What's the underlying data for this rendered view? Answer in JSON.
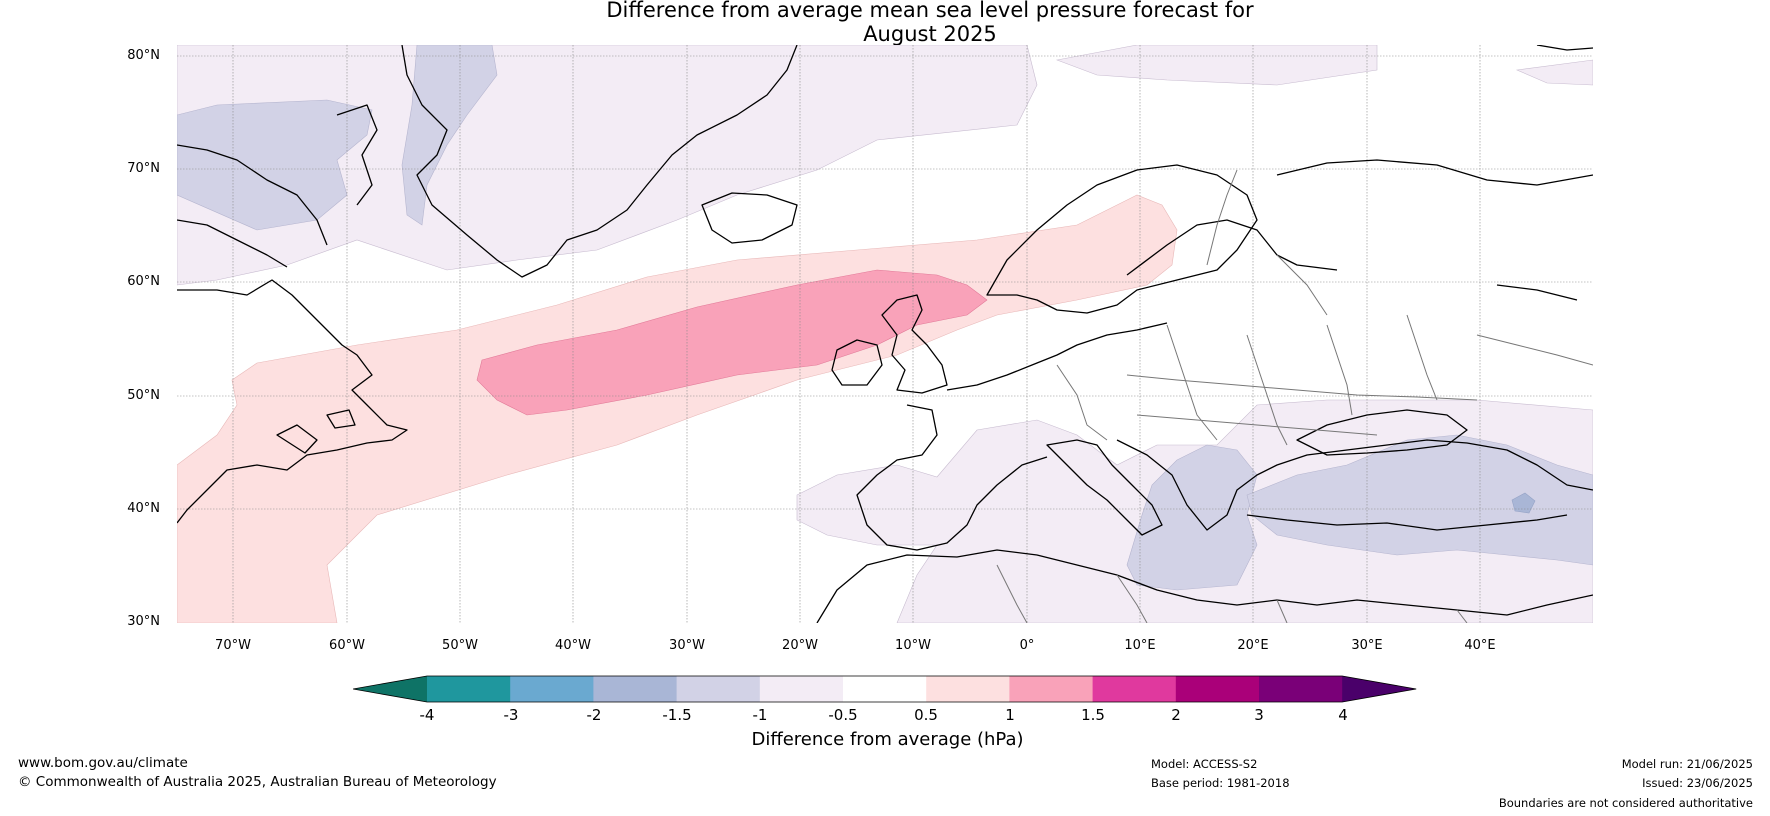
{
  "title": {
    "line1": "Difference from average mean sea level pressure forecast for",
    "line2": "August 2025"
  },
  "axes": {
    "latitude_ticks": [
      "80°N",
      "70°N",
      "60°N",
      "50°N",
      "40°N",
      "30°N"
    ],
    "longitude_ticks": [
      "70°W",
      "60°W",
      "50°W",
      "40°W",
      "30°W",
      "20°W",
      "10°W",
      "0°",
      "10°E",
      "20°E",
      "30°E",
      "40°E"
    ],
    "extent": {
      "lon_min": -75,
      "lon_max": 50,
      "lat_min": 30,
      "lat_max": 81
    }
  },
  "colorbar": {
    "tick_labels": [
      "-4",
      "-3",
      "-2",
      "-1.5",
      "-1",
      "-0.5",
      "0.5",
      "1",
      "1.5",
      "2",
      "3",
      "4"
    ],
    "colors": [
      "#0e7366",
      "#1f979e",
      "#6aa9d0",
      "#a9b6d6",
      "#d2d2e6",
      "#f3ecf5",
      "#ffffff",
      "#fde0e0",
      "#f9a2b9",
      "#e0399e",
      "#aa0079",
      "#7a0078",
      "#4a006a"
    ],
    "label": "Difference from average (hPa)"
  },
  "footer": {
    "website": "www.bom.gov.au/climate",
    "copyright": "© Commonwealth of Australia 2025, Australian Bureau of Meteorology",
    "model": "Model: ACCESS-S2",
    "base_period": "Base period: 1981-2018",
    "model_run": "Model run: 21/06/2025",
    "issued": "Issued: 23/06/2025",
    "disclaimer": "Boundaries are not considered authoritative"
  }
}
